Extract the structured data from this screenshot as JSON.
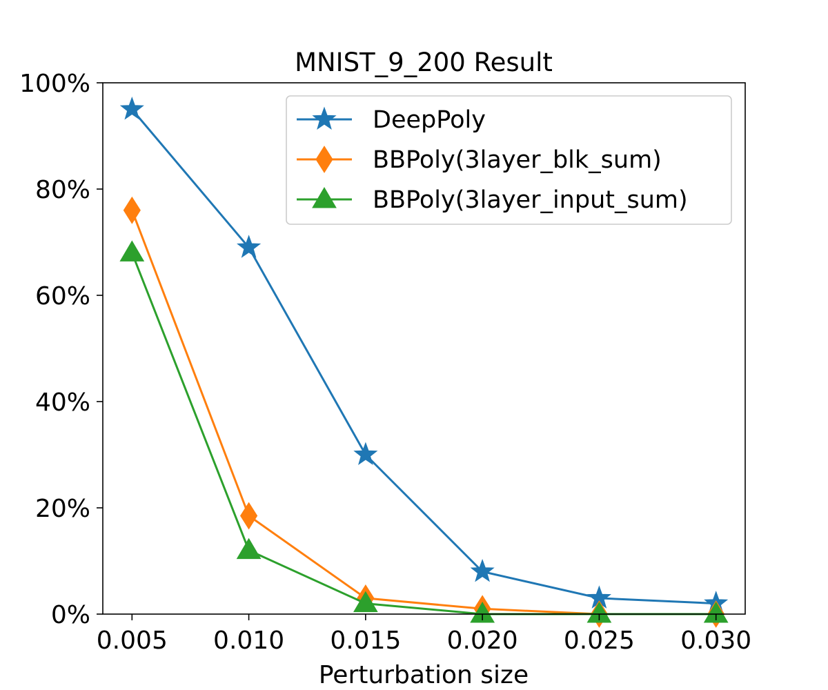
{
  "chart_data": {
    "type": "line",
    "title": "MNIST_9_200 Result",
    "xlabel": "Perturbation size",
    "ylabel": "",
    "x": [
      0.005,
      0.01,
      0.015,
      0.02,
      0.025,
      0.03
    ],
    "x_tick_labels": [
      "0.005",
      "0.010",
      "0.015",
      "0.020",
      "0.025",
      "0.030"
    ],
    "ylim": [
      0,
      100
    ],
    "y_ticks": [
      0,
      20,
      40,
      60,
      80,
      100
    ],
    "y_tick_labels": [
      "0%",
      "20%",
      "40%",
      "60%",
      "80%",
      "100%"
    ],
    "grid": false,
    "legend_position": "top-right",
    "series": [
      {
        "name": "DeepPoly",
        "marker": "star",
        "color": "#1f77b4",
        "values": [
          95,
          69,
          30,
          8,
          3,
          2
        ]
      },
      {
        "name": "BBPoly(3layer_blk_sum)",
        "marker": "diamond",
        "color": "#ff7f0e",
        "values": [
          76,
          18.5,
          3,
          1,
          0,
          0
        ]
      },
      {
        "name": "BBPoly(3layer_input_sum)",
        "marker": "triangle",
        "color": "#2ca02c",
        "values": [
          68,
          12,
          2,
          0,
          0,
          0
        ]
      }
    ]
  }
}
